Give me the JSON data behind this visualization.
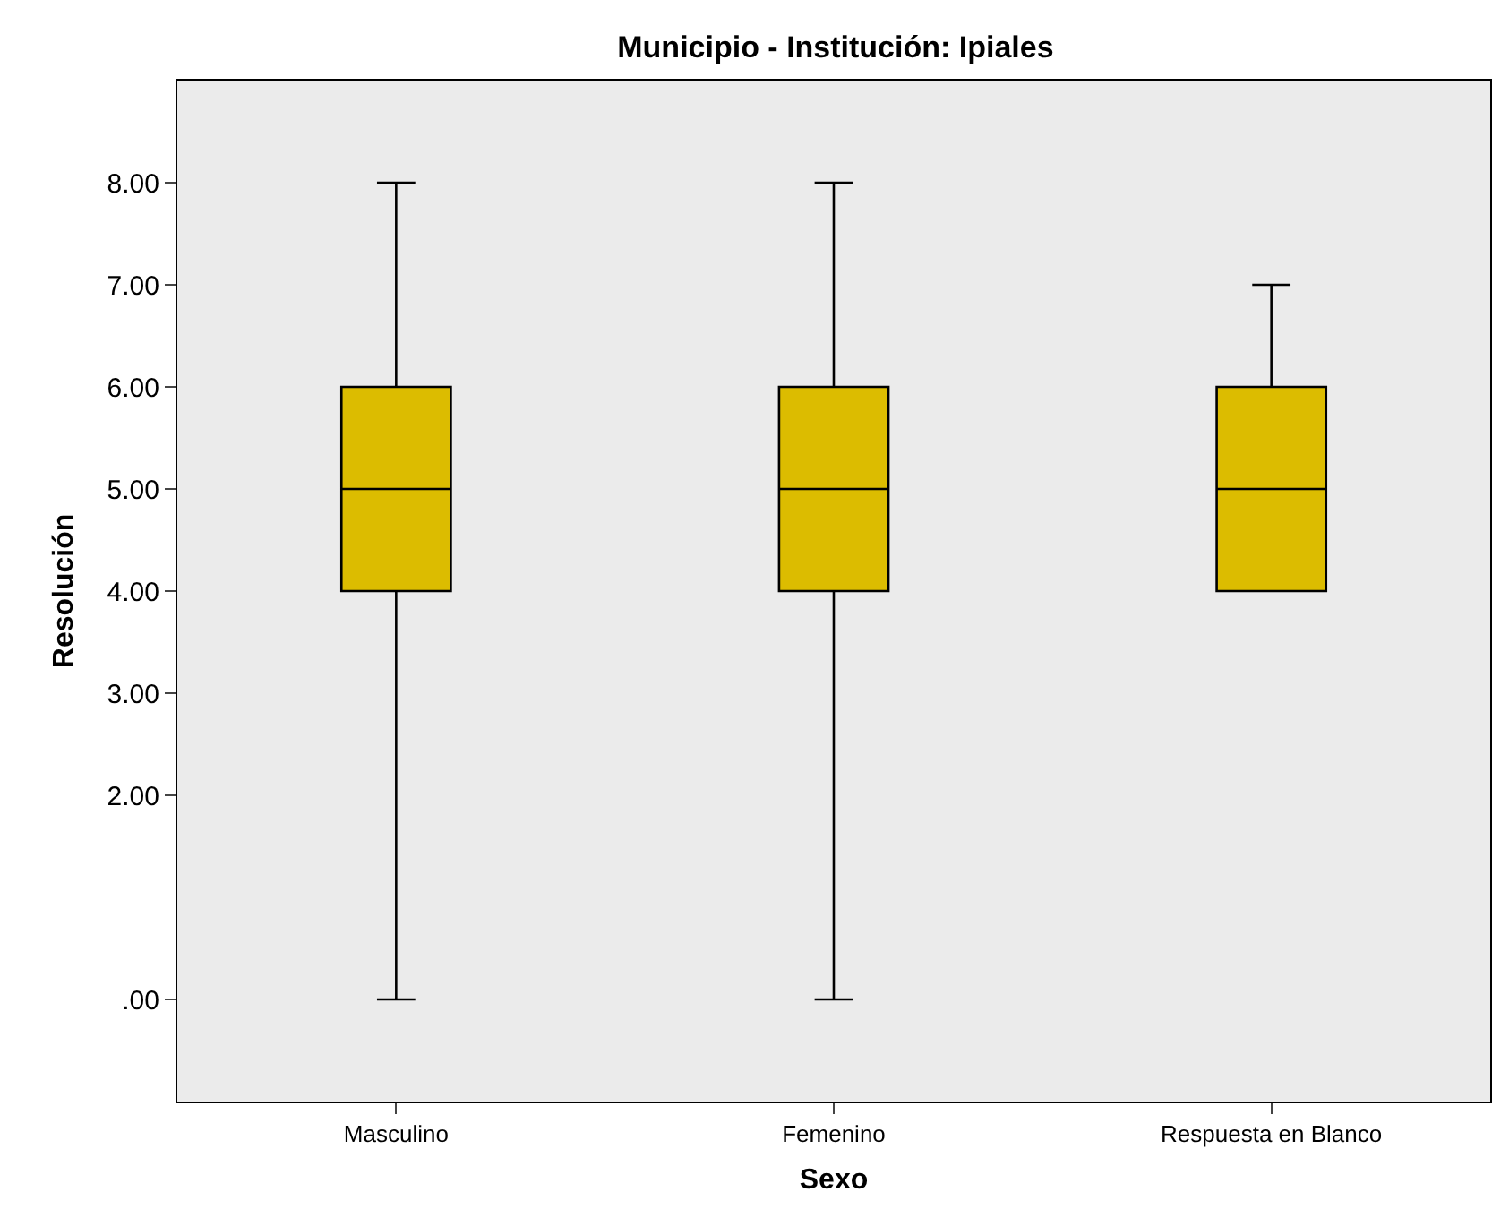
{
  "chart_data": {
    "type": "box",
    "title": "Municipio - Institución: Ipiales",
    "xlabel": "Sexo",
    "ylabel": "Resolución",
    "categories": [
      "Masculino",
      "Femenino",
      "Respuesta en Blanco"
    ],
    "series": [
      {
        "color": "#dcbc00",
        "boxes": [
          {
            "low": 0,
            "q1": 4,
            "median": 5,
            "q3": 6,
            "high": 8
          },
          {
            "low": 0,
            "q1": 4,
            "median": 5,
            "q3": 6,
            "high": 8
          },
          {
            "low": 4,
            "q1": 4,
            "median": 5,
            "q3": 6,
            "high": 7
          }
        ]
      }
    ],
    "ylim": [
      -1,
      9
    ],
    "yticks": [
      {
        "value": 0,
        "label": ".00"
      },
      {
        "value": 2,
        "label": "2.00"
      },
      {
        "value": 3,
        "label": "3.00"
      },
      {
        "value": 4,
        "label": "4.00"
      },
      {
        "value": 5,
        "label": "5.00"
      },
      {
        "value": 6,
        "label": "6.00"
      },
      {
        "value": 7,
        "label": "7.00"
      },
      {
        "value": 8,
        "label": "8.00"
      }
    ],
    "grid": false
  }
}
